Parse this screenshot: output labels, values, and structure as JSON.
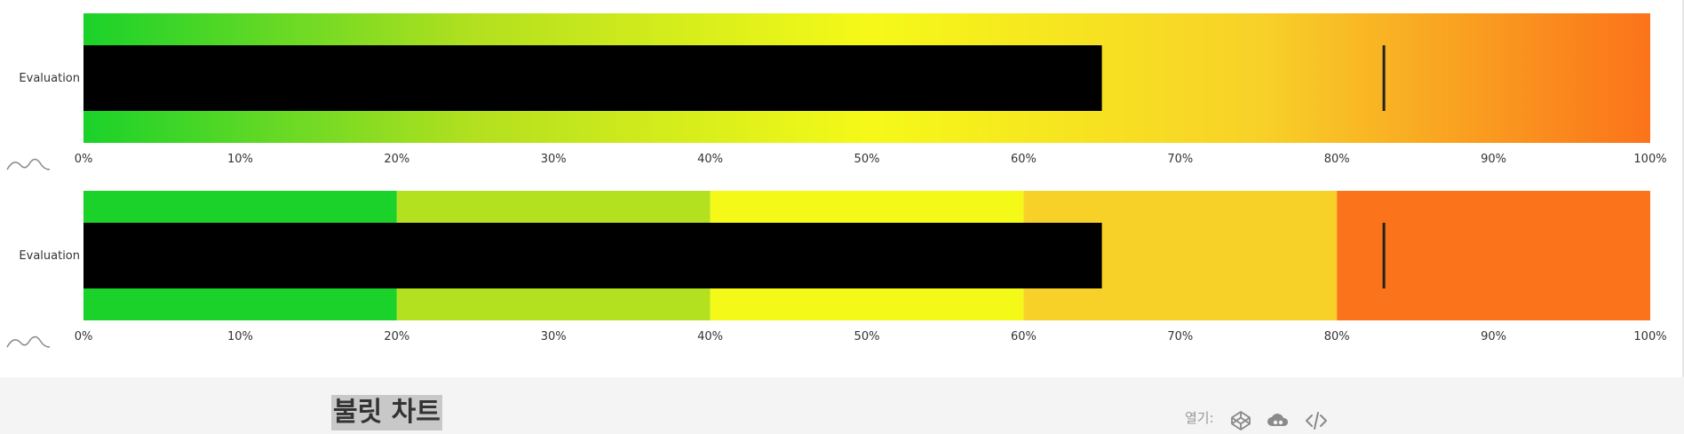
{
  "chart_data": [
    {
      "type": "bullet",
      "category": "Evaluation",
      "value": 65,
      "target": 83,
      "xlim": [
        0,
        100
      ],
      "ticks": [
        "0%",
        "10%",
        "20%",
        "30%",
        "40%",
        "50%",
        "60%",
        "70%",
        "80%",
        "90%",
        "100%"
      ],
      "background": "gradient",
      "colors": [
        "#1ad22a",
        "#b3e01f",
        "#f5f918",
        "#f8d128",
        "#fb731a"
      ]
    },
    {
      "type": "bullet",
      "category": "Evaluation",
      "value": 65,
      "target": 83,
      "xlim": [
        0,
        100
      ],
      "ticks": [
        "0%",
        "10%",
        "20%",
        "30%",
        "40%",
        "50%",
        "60%",
        "70%",
        "80%",
        "90%",
        "100%"
      ],
      "background": "bands",
      "bands": [
        20,
        40,
        60,
        80,
        100
      ],
      "colors": [
        "#1ad22a",
        "#b3e01f",
        "#f5f918",
        "#f8d128",
        "#fb731a"
      ]
    }
  ],
  "footer": {
    "title": "불릿 차트",
    "open_label": "열기:",
    "icons": [
      "codepen-icon",
      "cloud-icon",
      "code-icon"
    ]
  }
}
